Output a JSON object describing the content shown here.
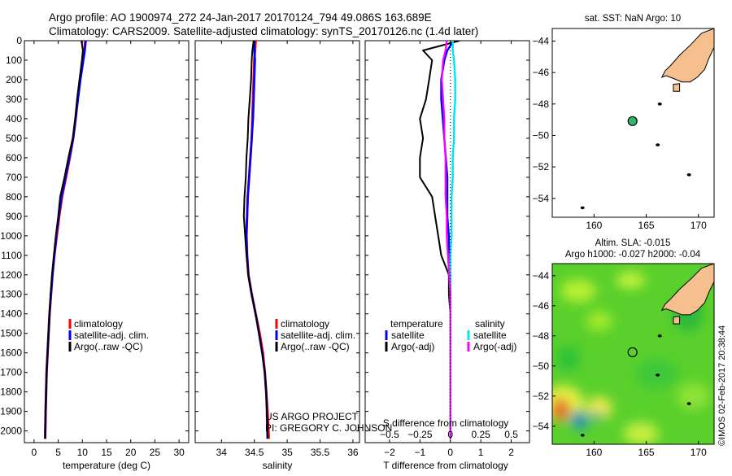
{
  "header": {
    "line1": "Argo profile: AO 1900974_272 24-Jan-2017 20170124_794 49.086S 163.689E",
    "line2": "Climatology: CARS2009. Satellite-adjusted climatology: synTS_20170126.nc (1.4d later)"
  },
  "colors": {
    "climatology": "#ff0000",
    "satellite": "#0000ff",
    "argo": "#000000",
    "sal_satellite": "#00e5ee",
    "sal_argo": "#ff00ff",
    "land": "#f6c08e",
    "argo_marker": "#2eb86b"
  },
  "project": {
    "line1": "US ARGO PROJECT",
    "line2": "PI: GREGORY C. JOHNSON"
  },
  "side_label": "©IMOS 02-Feb-2017 20:38:44",
  "chart_data": [
    {
      "id": "temperature",
      "type": "line",
      "xlabel": "temperature (deg C)",
      "xlim": [
        -2,
        32
      ],
      "xticks": [
        0,
        5,
        10,
        15,
        20,
        25,
        30
      ],
      "xtick_labels": [
        "0",
        "5",
        "10",
        "15",
        "20",
        "25",
        "30"
      ],
      "ylim": [
        0,
        2060
      ],
      "yticks": [
        0,
        100,
        200,
        300,
        400,
        500,
        600,
        700,
        800,
        900,
        1000,
        1100,
        1200,
        1300,
        1400,
        1500,
        1600,
        1700,
        1800,
        1900,
        2000
      ],
      "ytick_labels": [
        "0",
        "100",
        "200",
        "300",
        "400",
        "500",
        "600",
        "700",
        "800",
        "900",
        "1000",
        "1100",
        "1200",
        "1300",
        "1400",
        "1500",
        "1600",
        "1700",
        "1800",
        "1900",
        "2000"
      ],
      "legend": [
        "climatology",
        "satellite-adj. clim.",
        "Argo(..raw -QC)"
      ],
      "series": [
        {
          "name": "climatology",
          "color": "#ff0000",
          "x": [
            10.6,
            10.4,
            10.1,
            9.5,
            9.0,
            8.6,
            8.1,
            7.4,
            6.6,
            5.8,
            5.2,
            4.7,
            4.2,
            3.8,
            3.5,
            3.2,
            3.0,
            2.8,
            2.6,
            2.5,
            2.4,
            2.3
          ],
          "depth": [
            0,
            50,
            100,
            200,
            300,
            400,
            500,
            600,
            700,
            800,
            900,
            1000,
            1100,
            1200,
            1300,
            1400,
            1500,
            1600,
            1700,
            1800,
            1900,
            2040
          ]
        },
        {
          "name": "satellite-adj. clim.",
          "color": "#0000ff",
          "x": [
            10.7,
            10.5,
            10.2,
            9.6,
            9.1,
            8.6,
            8.1,
            7.3,
            6.5,
            5.7,
            5.1,
            4.6,
            4.2,
            3.8,
            3.5,
            3.2,
            3.0,
            2.8,
            2.6,
            2.5,
            2.4,
            2.3
          ],
          "depth": [
            0,
            50,
            100,
            200,
            300,
            400,
            500,
            600,
            700,
            800,
            900,
            1000,
            1100,
            1200,
            1300,
            1400,
            1500,
            1600,
            1700,
            1800,
            1900,
            2040
          ]
        },
        {
          "name": "Argo(..raw -QC)",
          "color": "#000000",
          "x": [
            9.8,
            10.1,
            9.9,
            9.4,
            8.9,
            8.5,
            8.0,
            7.1,
            6.3,
            5.4,
            5.0,
            4.5,
            4.1,
            3.7,
            3.4,
            3.2,
            3.0,
            2.8,
            2.6,
            2.5,
            2.4,
            2.3
          ],
          "depth": [
            0,
            50,
            100,
            200,
            300,
            400,
            500,
            600,
            700,
            800,
            900,
            1000,
            1100,
            1200,
            1300,
            1400,
            1500,
            1600,
            1700,
            1800,
            1900,
            2040
          ]
        }
      ]
    },
    {
      "id": "salinity",
      "type": "line",
      "xlabel": "salinity",
      "xlim": [
        33.6,
        36.1
      ],
      "xticks": [
        34,
        34.5,
        35,
        35.5,
        36
      ],
      "xtick_labels": [
        "34",
        "34.5",
        "35",
        "35.5",
        "36"
      ],
      "ylim": [
        0,
        2060
      ],
      "legend": [
        "climatology",
        "satellite-adj. clim.",
        "Argo(..raw -QC)"
      ],
      "series": [
        {
          "name": "climatology",
          "color": "#ff0000",
          "x": [
            34.52,
            34.51,
            34.5,
            34.49,
            34.48,
            34.47,
            34.46,
            34.44,
            34.42,
            34.4,
            34.39,
            34.38,
            34.39,
            34.41,
            34.46,
            34.52,
            34.58,
            34.63,
            34.66,
            34.68,
            34.7,
            34.72
          ],
          "depth": [
            0,
            50,
            100,
            200,
            300,
            400,
            500,
            600,
            700,
            800,
            900,
            1000,
            1100,
            1200,
            1300,
            1400,
            1500,
            1600,
            1700,
            1800,
            1900,
            2040
          ]
        },
        {
          "name": "satellite-adj. clim.",
          "color": "#0000ff",
          "x": [
            34.5,
            34.5,
            34.51,
            34.5,
            34.49,
            34.48,
            34.46,
            34.44,
            34.42,
            34.4,
            34.39,
            34.38,
            34.39,
            34.41,
            34.46,
            34.52,
            34.57,
            34.62,
            34.66,
            34.68,
            34.69,
            34.7
          ],
          "depth": [
            0,
            50,
            100,
            200,
            300,
            400,
            500,
            600,
            700,
            800,
            900,
            1000,
            1100,
            1200,
            1300,
            1400,
            1500,
            1600,
            1700,
            1800,
            1900,
            2040
          ]
        },
        {
          "name": "Argo(..raw -QC)",
          "color": "#000000",
          "x": [
            34.49,
            34.47,
            34.46,
            34.45,
            34.43,
            34.41,
            34.4,
            34.38,
            34.37,
            34.35,
            34.34,
            34.36,
            34.38,
            34.41,
            34.46,
            34.52,
            34.57,
            34.62,
            34.66,
            34.68,
            34.69,
            34.7
          ],
          "depth": [
            0,
            50,
            100,
            200,
            300,
            400,
            500,
            600,
            700,
            800,
            900,
            1000,
            1100,
            1200,
            1300,
            1400,
            1500,
            1600,
            1700,
            1800,
            1900,
            2040
          ]
        }
      ]
    },
    {
      "id": "difference",
      "type": "line",
      "xlabel": "T difference from climatology",
      "xlim": [
        -2.8,
        2.6
      ],
      "xticks": [
        -2,
        -1,
        0,
        1,
        2
      ],
      "xtick_labels": [
        "−2",
        "−1",
        "0",
        "1",
        "2"
      ],
      "top_xlabel": "S difference from climatology",
      "top_xticks": [
        -0.5,
        -0.25,
        0,
        0.25,
        0.5
      ],
      "top_xtick_labels": [
        "−0.5",
        "−0.25",
        "0",
        "0.25",
        "0.5"
      ],
      "top_xlim": [
        -0.7,
        0.65
      ],
      "ylim": [
        0,
        2060
      ],
      "legend_left_title": "temperature",
      "legend_right_title": "salinity",
      "legend": [
        "satellite",
        "Argo(-adj)",
        "satellite",
        "Argo(-adj)"
      ],
      "series": [
        {
          "name": "T satellite",
          "color": "#0000ff",
          "x": [
            0.1,
            -0.1,
            -0.2,
            -0.3,
            -0.3,
            -0.25,
            -0.2,
            -0.15,
            -0.1,
            -0.1,
            -0.1,
            -0.05,
            -0.05,
            0,
            0,
            0,
            0,
            0,
            0,
            0,
            0,
            0
          ],
          "depth": [
            0,
            50,
            100,
            200,
            300,
            400,
            500,
            600,
            700,
            800,
            900,
            1000,
            1100,
            1200,
            1300,
            1400,
            1500,
            1600,
            1700,
            1800,
            1900,
            2040
          ]
        },
        {
          "name": "T Argo(-adj)",
          "color": "#000000",
          "x": [
            0.3,
            -0.9,
            -0.6,
            -0.7,
            -0.8,
            -1.0,
            -0.9,
            -1.0,
            -1.0,
            -0.6,
            -0.5,
            -0.4,
            -0.3,
            -0.05,
            -0.05,
            0,
            0,
            0,
            0,
            0,
            0,
            0
          ],
          "depth": [
            0,
            50,
            100,
            200,
            300,
            400,
            500,
            600,
            700,
            800,
            900,
            1000,
            1100,
            1200,
            1300,
            1400,
            1500,
            1600,
            1700,
            1800,
            1900,
            2040
          ]
        },
        {
          "name": "S satellite",
          "color": "#00e5ee",
          "x": [
            0.02,
            0.02,
            0.03,
            0.04,
            0.04,
            0.03,
            0.03,
            0.02,
            0.02,
            0.01,
            0.01,
            0.01,
            0.0,
            0.0,
            0.0,
            0.0,
            0.0,
            0.0,
            0.0,
            0.0,
            0.0,
            0.0
          ],
          "depth": [
            0,
            50,
            100,
            200,
            300,
            400,
            500,
            600,
            700,
            800,
            900,
            1000,
            1100,
            1200,
            1300,
            1400,
            1500,
            1600,
            1700,
            1800,
            1900,
            2040
          ]
        },
        {
          "name": "S Argo(-adj)",
          "color": "#ff00ff",
          "x": [
            -0.03,
            -0.04,
            -0.06,
            -0.07,
            -0.06,
            -0.05,
            -0.05,
            -0.04,
            -0.04,
            -0.04,
            -0.03,
            -0.03,
            -0.02,
            -0.01,
            0,
            0,
            0,
            0,
            0,
            0,
            0,
            0
          ],
          "depth": [
            0,
            50,
            100,
            200,
            300,
            400,
            500,
            600,
            700,
            800,
            900,
            1000,
            1100,
            1200,
            1300,
            1400,
            1500,
            1600,
            1700,
            1800,
            1900,
            2040
          ]
        }
      ]
    },
    {
      "id": "map_sst",
      "type": "scatter",
      "title": "sat. SST: NaN  Argo: 10",
      "xlim": [
        156,
        171.5
      ],
      "ylim": [
        -55.2,
        -43.2
      ],
      "xticks": [
        160,
        165,
        170
      ],
      "xtick_labels": [
        "160",
        "165",
        "170"
      ],
      "yticks": [
        -44,
        -46,
        -48,
        -50,
        -52,
        -54
      ],
      "ytick_labels": [
        "−44",
        "−46",
        "−48",
        "−50",
        "−52",
        "−54"
      ],
      "argo_position": {
        "lon": 163.689,
        "lat": -49.086
      }
    },
    {
      "id": "map_sla",
      "type": "heatmap",
      "title_line1": "Altim. SLA: -0.015",
      "title_line2": "Argo h1000: -0.027  h2000: -0.04",
      "xlim": [
        156,
        171.5
      ],
      "ylim": [
        -55.2,
        -43.2
      ],
      "xticks": [
        160,
        165,
        170
      ],
      "xtick_labels": [
        "160",
        "165",
        "170"
      ],
      "yticks": [
        -44,
        -46,
        -48,
        -50,
        -52,
        -54
      ],
      "ytick_labels": [
        "−44",
        "−46",
        "−48",
        "−50",
        "−52",
        "−54"
      ],
      "argo_position": {
        "lon": 163.689,
        "lat": -49.086
      }
    }
  ]
}
